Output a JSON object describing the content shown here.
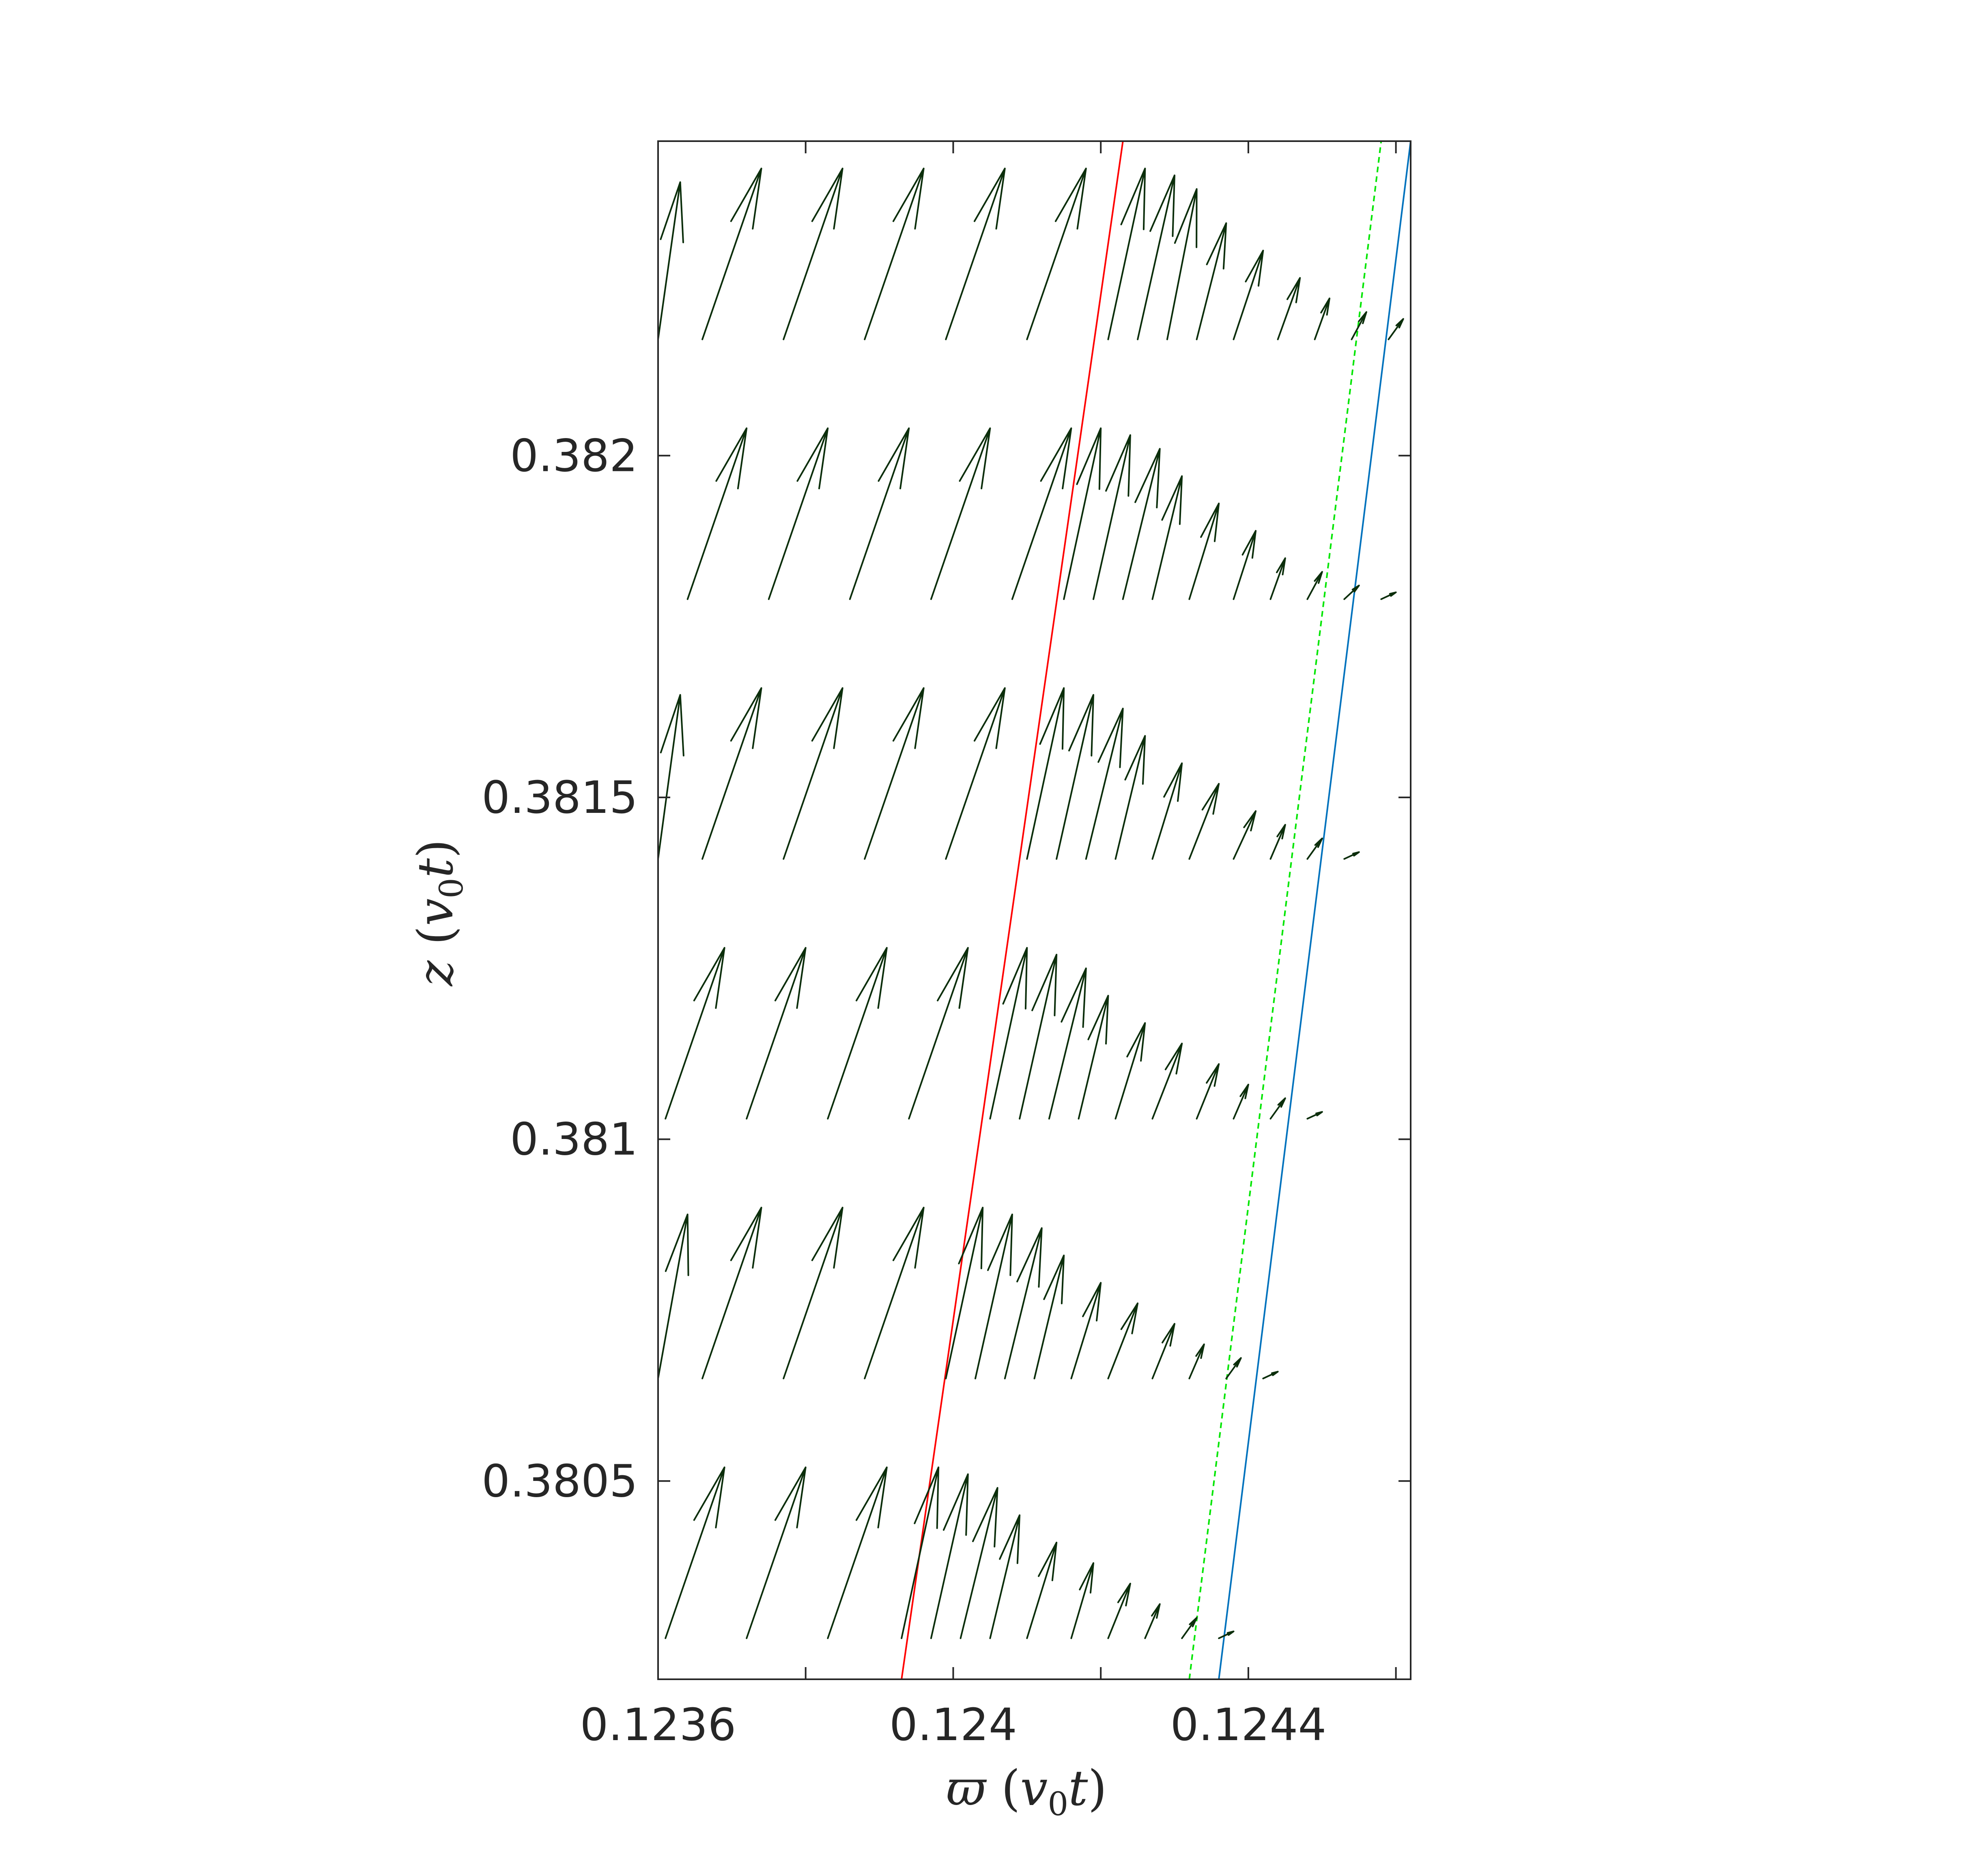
{
  "chart_data": {
    "type": "quiver",
    "xlabel": {
      "symbol": "ϖ",
      "unit_var": "v",
      "unit_sub": "0",
      "unit_t": "t"
    },
    "ylabel": {
      "symbol": "z",
      "unit_var": "v",
      "unit_sub": "0",
      "unit_t": "t"
    },
    "xlim": [
      0.1236,
      0.12462
    ],
    "ylim": [
      0.38021,
      0.38246
    ],
    "xticks": [
      0.1236,
      0.1238,
      0.124,
      0.1242,
      0.1244,
      0.1246
    ],
    "xtick_labels": [
      "0.1236",
      "",
      "0.124",
      "",
      "0.1244",
      ""
    ],
    "yticks": [
      0.3805,
      0.381,
      0.3815,
      0.382
    ],
    "ytick_labels": [
      "0.3805",
      "0.381",
      "0.3815",
      "0.382"
    ],
    "grid": false,
    "lines": [
      {
        "label": "red",
        "color": "#ff0000",
        "style": "solid",
        "x": [
          0.12393,
          0.12423
        ],
        "y": [
          0.38021,
          0.38246
        ]
      },
      {
        "label": "green",
        "color": "#00e600",
        "style": "dashed",
        "x": [
          0.12432,
          0.12458
        ],
        "y": [
          0.38021,
          0.38246
        ]
      },
      {
        "label": "blue",
        "color": "#0072bd",
        "style": "solid",
        "x": [
          0.12436,
          0.12462
        ],
        "y": [
          0.38021,
          0.38246
        ]
      }
    ],
    "arrow_color": "#0b2e0b",
    "arrow_rows": [
      {
        "z": 0.38217,
        "arrows": [
          [
            0.1236,
            0.12363,
            0.00023
          ],
          [
            0.12366,
            0.12374,
            0.00025
          ],
          [
            0.12377,
            0.12385,
            0.00025
          ],
          [
            0.12388,
            0.12396,
            0.00025
          ],
          [
            0.12399,
            0.12407,
            0.00025
          ],
          [
            0.1241,
            0.12418,
            0.00025
          ],
          [
            0.12421,
            0.12426,
            0.00025
          ],
          [
            0.12425,
            0.1243,
            0.00024
          ],
          [
            0.12429,
            0.12433,
            0.00022
          ],
          [
            0.12433,
            0.12437,
            0.00017
          ],
          [
            0.12438,
            0.12442,
            0.00013
          ],
          [
            0.12444,
            0.12447,
            9e-05
          ],
          [
            0.12449,
            0.12451,
            6e-05
          ],
          [
            0.12454,
            0.12456,
            4e-05
          ],
          [
            0.12459,
            0.12461,
            3e-05
          ],
          [
            0.12464,
            0.12466,
            1e-05
          ]
        ]
      },
      {
        "z": 0.38179,
        "arrows": [
          [
            0.12364,
            0.12372,
            0.00025
          ],
          [
            0.12375,
            0.12383,
            0.00025
          ],
          [
            0.12386,
            0.12394,
            0.00025
          ],
          [
            0.12397,
            0.12405,
            0.00025
          ],
          [
            0.12408,
            0.12416,
            0.00025
          ],
          [
            0.12415,
            0.1242,
            0.00025
          ],
          [
            0.12419,
            0.12424,
            0.00024
          ],
          [
            0.12423,
            0.12428,
            0.00022
          ],
          [
            0.12427,
            0.12431,
            0.00018
          ],
          [
            0.12432,
            0.12436,
            0.00014
          ],
          [
            0.12438,
            0.12441,
            0.0001
          ],
          [
            0.12443,
            0.12445,
            6e-05
          ],
          [
            0.12448,
            0.1245,
            4e-05
          ],
          [
            0.12453,
            0.12455,
            2e-05
          ],
          [
            0.12458,
            0.1246,
            1e-05
          ]
        ]
      },
      {
        "z": 0.38141,
        "arrows": [
          [
            0.1236,
            0.12363,
            0.00024
          ],
          [
            0.12366,
            0.12374,
            0.00025
          ],
          [
            0.12377,
            0.12385,
            0.00025
          ],
          [
            0.12388,
            0.12396,
            0.00025
          ],
          [
            0.12399,
            0.12407,
            0.00025
          ],
          [
            0.1241,
            0.12415,
            0.00025
          ],
          [
            0.12414,
            0.12419,
            0.00024
          ],
          [
            0.12418,
            0.12423,
            0.00022
          ],
          [
            0.12422,
            0.12426,
            0.00018
          ],
          [
            0.12427,
            0.12431,
            0.00014
          ],
          [
            0.12432,
            0.12436,
            0.00011
          ],
          [
            0.12438,
            0.12441,
            7e-05
          ],
          [
            0.12443,
            0.12445,
            5e-05
          ],
          [
            0.12448,
            0.1245,
            3e-05
          ],
          [
            0.12453,
            0.12455,
            1e-05
          ]
        ]
      },
      {
        "z": 0.38103,
        "arrows": [
          [
            0.12361,
            0.12369,
            0.00025
          ],
          [
            0.12372,
            0.1238,
            0.00025
          ],
          [
            0.12383,
            0.12391,
            0.00025
          ],
          [
            0.12394,
            0.12402,
            0.00025
          ],
          [
            0.12405,
            0.1241,
            0.00025
          ],
          [
            0.12409,
            0.12414,
            0.00024
          ],
          [
            0.12413,
            0.12418,
            0.00022
          ],
          [
            0.12417,
            0.12421,
            0.00018
          ],
          [
            0.12422,
            0.12426,
            0.00014
          ],
          [
            0.12427,
            0.12431,
            0.00011
          ],
          [
            0.12433,
            0.12436,
            8e-05
          ],
          [
            0.12438,
            0.1244,
            5e-05
          ],
          [
            0.12443,
            0.12445,
            3e-05
          ],
          [
            0.12448,
            0.1245,
            1e-05
          ]
        ]
      },
      {
        "z": 0.38065,
        "arrows": [
          [
            0.1236,
            0.12364,
            0.00024
          ],
          [
            0.12366,
            0.12374,
            0.00025
          ],
          [
            0.12377,
            0.12385,
            0.00025
          ],
          [
            0.12388,
            0.12396,
            0.00025
          ],
          [
            0.12399,
            0.12404,
            0.00025
          ],
          [
            0.12403,
            0.12408,
            0.00024
          ],
          [
            0.12407,
            0.12412,
            0.00022
          ],
          [
            0.12411,
            0.12415,
            0.00018
          ],
          [
            0.12416,
            0.1242,
            0.00014
          ],
          [
            0.12421,
            0.12425,
            0.00011
          ],
          [
            0.12427,
            0.1243,
            8e-05
          ],
          [
            0.12432,
            0.12434,
            5e-05
          ],
          [
            0.12437,
            0.12439,
            3e-05
          ],
          [
            0.12442,
            0.12444,
            1e-05
          ]
        ]
      },
      {
        "z": 0.38027,
        "arrows": [
          [
            0.12361,
            0.12369,
            0.00025
          ],
          [
            0.12372,
            0.1238,
            0.00025
          ],
          [
            0.12383,
            0.12391,
            0.00025
          ],
          [
            0.12393,
            0.12398,
            0.00025
          ],
          [
            0.12397,
            0.12402,
            0.00024
          ],
          [
            0.12401,
            0.12406,
            0.00022
          ],
          [
            0.12405,
            0.12409,
            0.00018
          ],
          [
            0.1241,
            0.12414,
            0.00014
          ],
          [
            0.12416,
            0.12419,
            0.00011
          ],
          [
            0.12421,
            0.12424,
            8e-05
          ],
          [
            0.12426,
            0.12428,
            5e-05
          ],
          [
            0.12431,
            0.12433,
            3e-05
          ],
          [
            0.12436,
            0.12438,
            1e-05
          ]
        ]
      }
    ]
  }
}
